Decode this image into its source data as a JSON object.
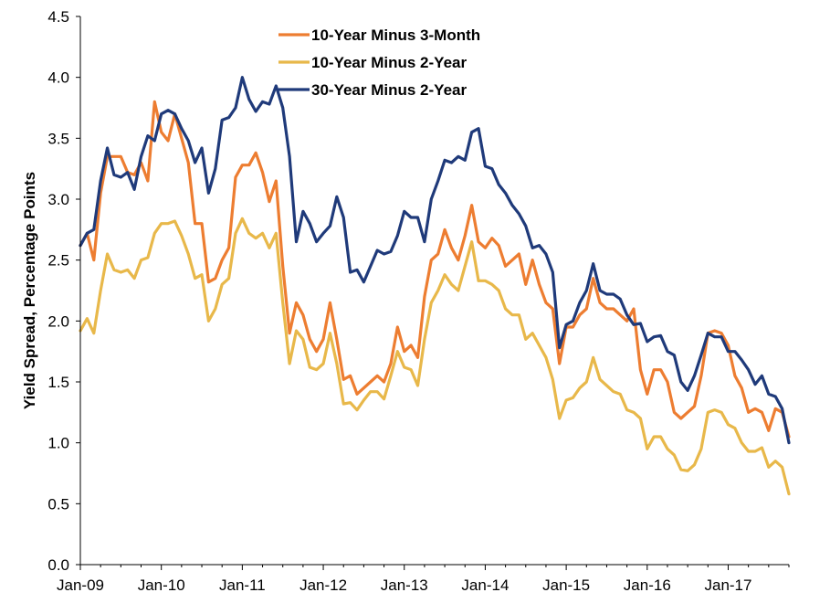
{
  "chart_data": {
    "type": "line",
    "title": "",
    "xlabel": "",
    "ylabel": "Yield Spread, Percentage Points",
    "ylim": [
      0,
      4.5
    ],
    "yticks": [
      "0.0",
      "0.5",
      "1.0",
      "1.5",
      "2.0",
      "2.5",
      "3.0",
      "3.5",
      "4.0",
      "4.5"
    ],
    "xticks": [
      "Jan-09",
      "Jan-10",
      "Jan-11",
      "Jan-12",
      "Jan-13",
      "Jan-14",
      "Jan-15",
      "Jan-16",
      "Jan-17"
    ],
    "x_start": "Jan-09",
    "x_end": "Dec-17",
    "frequency": "monthly",
    "grid": false,
    "legend_position": "top-center",
    "series": [
      {
        "name": "10-Year Minus 3-Month",
        "color": "#ED7D31",
        "values": [
          2.62,
          2.72,
          2.5,
          3.05,
          3.35,
          3.35,
          3.35,
          3.22,
          3.2,
          3.3,
          3.15,
          3.8,
          3.55,
          3.48,
          3.7,
          3.5,
          3.3,
          2.8,
          2.8,
          2.32,
          2.35,
          2.5,
          2.6,
          3.18,
          3.28,
          3.28,
          3.38,
          3.22,
          2.98,
          3.15,
          2.45,
          1.9,
          2.15,
          2.05,
          1.85,
          1.75,
          1.85,
          2.15,
          1.85,
          1.52,
          1.55,
          1.4,
          1.45,
          1.5,
          1.55,
          1.5,
          1.65,
          1.95,
          1.75,
          1.8,
          1.7,
          2.2,
          2.5,
          2.55,
          2.75,
          2.6,
          2.5,
          2.7,
          2.95,
          2.65,
          2.6,
          2.68,
          2.62,
          2.45,
          2.5,
          2.55,
          2.3,
          2.5,
          2.3,
          2.15,
          2.1,
          1.65,
          1.95,
          1.95,
          2.05,
          2.1,
          2.35,
          2.15,
          2.1,
          2.1,
          2.05,
          2.0,
          2.1,
          1.6,
          1.4,
          1.6,
          1.6,
          1.5,
          1.25,
          1.2,
          1.25,
          1.3,
          1.55,
          1.9,
          1.92,
          1.9,
          1.8,
          1.55,
          1.45,
          1.25,
          1.28,
          1.25,
          1.1,
          1.28,
          1.25,
          1.05
        ]
      },
      {
        "name": "10-Year Minus 2-Year",
        "color": "#E8B84A",
        "values": [
          1.92,
          2.02,
          1.9,
          2.25,
          2.55,
          2.42,
          2.4,
          2.42,
          2.35,
          2.5,
          2.52,
          2.72,
          2.8,
          2.8,
          2.82,
          2.7,
          2.55,
          2.35,
          2.38,
          2.0,
          2.1,
          2.3,
          2.35,
          2.72,
          2.84,
          2.72,
          2.68,
          2.72,
          2.6,
          2.72,
          2.15,
          1.65,
          1.92,
          1.85,
          1.62,
          1.6,
          1.65,
          1.9,
          1.65,
          1.32,
          1.33,
          1.27,
          1.35,
          1.42,
          1.42,
          1.36,
          1.55,
          1.75,
          1.62,
          1.6,
          1.47,
          1.85,
          2.15,
          2.25,
          2.38,
          2.3,
          2.25,
          2.45,
          2.65,
          2.33,
          2.33,
          2.3,
          2.25,
          2.1,
          2.05,
          2.05,
          1.85,
          1.9,
          1.8,
          1.7,
          1.52,
          1.2,
          1.35,
          1.37,
          1.45,
          1.5,
          1.7,
          1.52,
          1.47,
          1.42,
          1.4,
          1.27,
          1.25,
          1.2,
          0.95,
          1.05,
          1.05,
          0.95,
          0.9,
          0.78,
          0.77,
          0.82,
          0.95,
          1.25,
          1.27,
          1.25,
          1.15,
          1.12,
          1.0,
          0.93,
          0.93,
          0.96,
          0.8,
          0.85,
          0.8,
          0.58
        ]
      },
      {
        "name": "30-Year Minus 2-Year",
        "color": "#1F3A7A",
        "values": [
          2.62,
          2.72,
          2.75,
          3.15,
          3.42,
          3.2,
          3.18,
          3.22,
          3.08,
          3.35,
          3.52,
          3.48,
          3.7,
          3.73,
          3.7,
          3.58,
          3.48,
          3.3,
          3.42,
          3.05,
          3.25,
          3.65,
          3.67,
          3.75,
          4.0,
          3.82,
          3.72,
          3.8,
          3.78,
          3.93,
          3.75,
          3.35,
          2.65,
          2.9,
          2.8,
          2.65,
          2.72,
          2.78,
          3.02,
          2.85,
          2.4,
          2.42,
          2.32,
          2.45,
          2.58,
          2.55,
          2.57,
          2.7,
          2.9,
          2.85,
          2.85,
          2.65,
          3.0,
          3.15,
          3.32,
          3.3,
          3.35,
          3.32,
          3.55,
          3.58,
          3.27,
          3.25,
          3.12,
          3.05,
          2.95,
          2.88,
          2.78,
          2.6,
          2.62,
          2.55,
          2.4,
          1.78,
          1.97,
          2.0,
          2.15,
          2.25,
          2.47,
          2.25,
          2.22,
          2.22,
          2.18,
          2.05,
          1.97,
          1.98,
          1.83,
          1.87,
          1.88,
          1.75,
          1.72,
          1.5,
          1.43,
          1.55,
          1.72,
          1.9,
          1.87,
          1.87,
          1.75,
          1.75,
          1.68,
          1.6,
          1.48,
          1.55,
          1.4,
          1.38,
          1.28,
          1.0
        ]
      }
    ]
  }
}
